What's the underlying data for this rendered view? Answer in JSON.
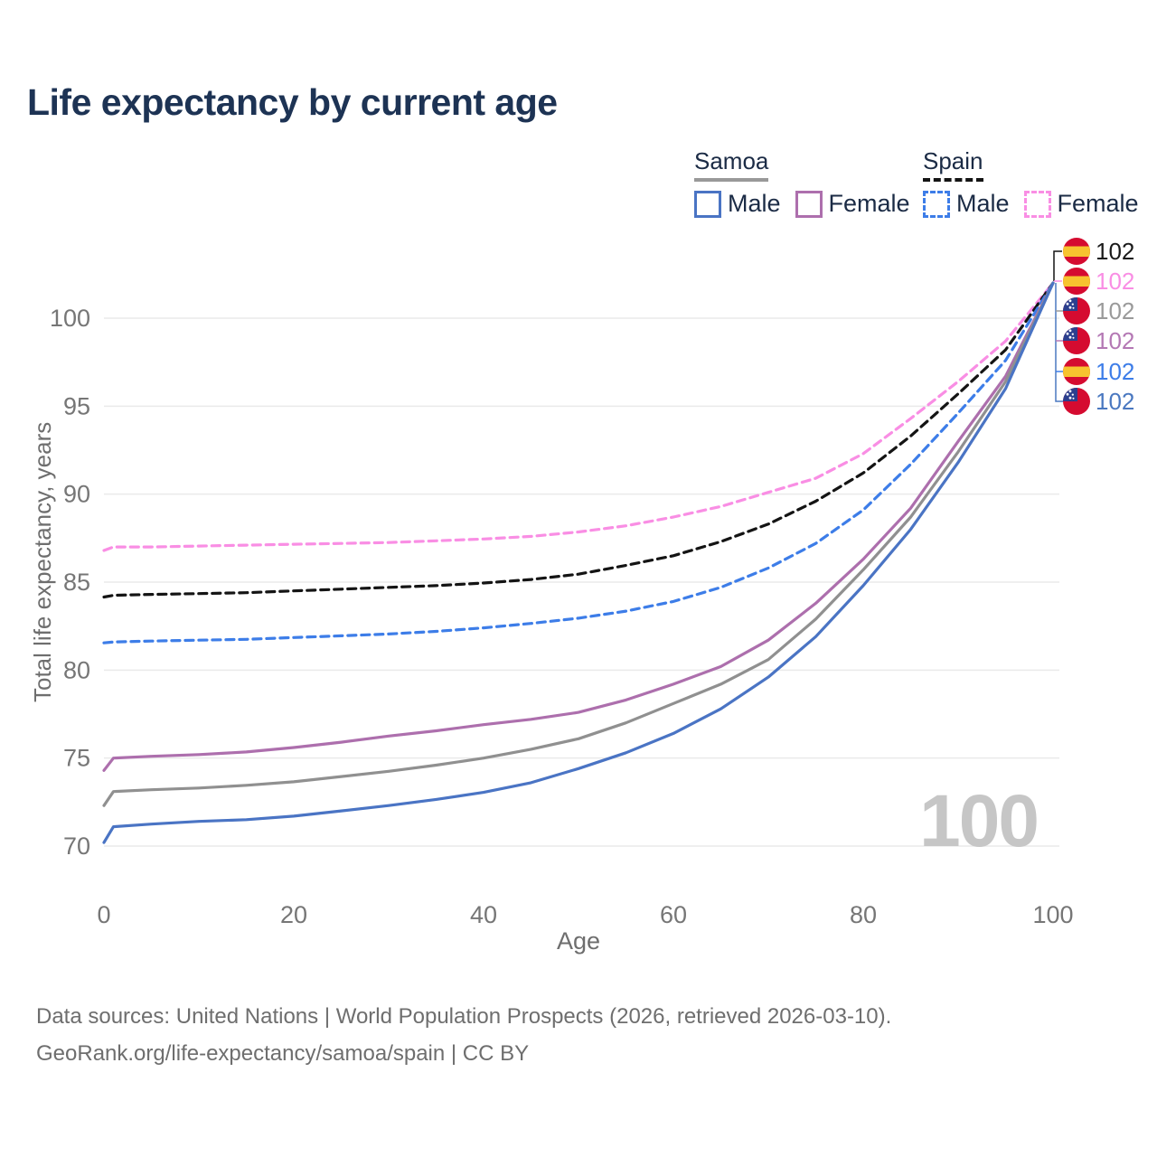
{
  "title": "Life expectancy by current age",
  "age_counter": "100",
  "legend": {
    "samoa": {
      "label": "Samoa",
      "male": "Male",
      "female": "Female"
    },
    "spain": {
      "label": "Spain",
      "male": "Male",
      "female": "Female"
    }
  },
  "chart_data": {
    "type": "line",
    "title": "Life expectancy by current age",
    "xlabel": "Age",
    "ylabel": "Total life expectancy, years",
    "xlim": [
      0,
      100
    ],
    "ylim": [
      70,
      102
    ],
    "grid": "horizontal",
    "x_ticks": [
      0,
      20,
      40,
      60,
      80,
      100
    ],
    "y_ticks": [
      70,
      75,
      80,
      85,
      90,
      95,
      100
    ],
    "x": [
      0,
      1,
      5,
      10,
      15,
      20,
      25,
      30,
      35,
      40,
      45,
      50,
      55,
      60,
      65,
      70,
      75,
      80,
      85,
      90,
      95,
      100
    ],
    "series": [
      {
        "key": "spain-female",
        "name": "Spain — Female",
        "color": "#f98ee4",
        "dash": true,
        "values": [
          86.8,
          87.0,
          87.0,
          87.05,
          87.1,
          87.15,
          87.2,
          87.25,
          87.35,
          87.45,
          87.6,
          87.85,
          88.2,
          88.7,
          89.3,
          90.1,
          90.9,
          92.3,
          94.3,
          96.4,
          98.7,
          102
        ]
      },
      {
        "key": "spain-both",
        "name": "Spain — Both sexes",
        "color": "#141414",
        "dash": true,
        "values": [
          84.15,
          84.25,
          84.3,
          84.35,
          84.4,
          84.5,
          84.6,
          84.7,
          84.8,
          84.95,
          85.15,
          85.45,
          85.95,
          86.5,
          87.3,
          88.3,
          89.6,
          91.2,
          93.3,
          95.7,
          98.2,
          102
        ]
      },
      {
        "key": "spain-male",
        "name": "Spain — Male",
        "color": "#3d7de8",
        "dash": true,
        "values": [
          81.55,
          81.6,
          81.65,
          81.7,
          81.75,
          81.85,
          81.95,
          82.05,
          82.2,
          82.4,
          82.65,
          82.95,
          83.35,
          83.9,
          84.7,
          85.8,
          87.2,
          89.1,
          91.7,
          94.6,
          97.6,
          102
        ]
      },
      {
        "key": "samoa-female",
        "name": "Samoa — Female",
        "color": "#ad6fad",
        "dash": false,
        "values": [
          74.3,
          75.0,
          75.1,
          75.2,
          75.35,
          75.6,
          75.9,
          76.25,
          76.55,
          76.9,
          77.2,
          77.6,
          78.3,
          79.2,
          80.2,
          81.7,
          83.8,
          86.3,
          89.2,
          93.0,
          96.7,
          102
        ]
      },
      {
        "key": "samoa-both",
        "name": "Samoa — Both sexes",
        "color": "#909090",
        "dash": false,
        "values": [
          72.3,
          73.1,
          73.2,
          73.3,
          73.45,
          73.65,
          73.95,
          74.25,
          74.6,
          75.0,
          75.5,
          76.1,
          77.0,
          78.1,
          79.2,
          80.6,
          82.9,
          85.7,
          88.7,
          92.4,
          96.4,
          102
        ]
      },
      {
        "key": "samoa-male",
        "name": "Samoa — Male",
        "color": "#4a74c4",
        "dash": false,
        "values": [
          70.2,
          71.1,
          71.25,
          71.4,
          71.5,
          71.7,
          72.0,
          72.3,
          72.65,
          73.05,
          73.6,
          74.4,
          75.3,
          76.4,
          77.8,
          79.6,
          81.9,
          84.8,
          88.0,
          91.8,
          96.0,
          102
        ]
      }
    ],
    "legend_position": "top-right"
  },
  "end_labels": [
    {
      "flag": "spain",
      "value": "102",
      "color": "#1a1a1a"
    },
    {
      "flag": "spain",
      "value": "102",
      "color": "#f98ee4"
    },
    {
      "flag": "samoa",
      "value": "102",
      "color": "#9a9a9a"
    },
    {
      "flag": "samoa",
      "value": "102",
      "color": "#b478b4"
    },
    {
      "flag": "spain",
      "value": "102",
      "color": "#3d7de8"
    },
    {
      "flag": "samoa",
      "value": "102",
      "color": "#4a78c0"
    }
  ],
  "footer": {
    "line1": "Data sources: United Nations | World Population Prospects (2026, retrieved 2026-03-10).",
    "line2": "GeoRank.org/life-expectancy/samoa/spain | CC BY"
  }
}
